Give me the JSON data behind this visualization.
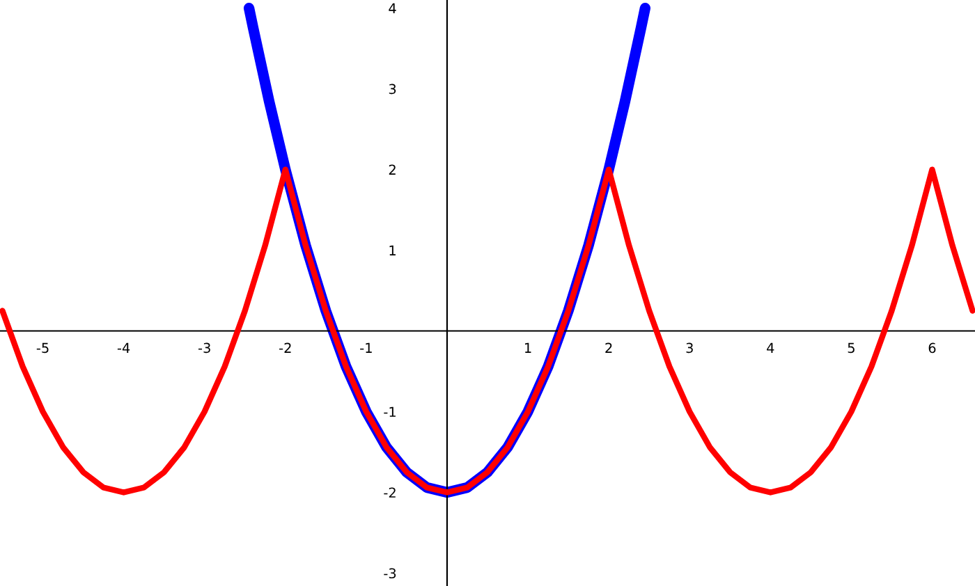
{
  "chart_data": {
    "type": "line",
    "xlim": [
      -5.53,
      6.53
    ],
    "ylim": [
      -3.16,
      4.1
    ],
    "xticks": [
      -5,
      -4,
      -3,
      -2,
      -1,
      1,
      2,
      3,
      4,
      5,
      6
    ],
    "yticks": [
      -3,
      -2,
      -1,
      1,
      2,
      3,
      4
    ],
    "grid": false,
    "legend": false,
    "marker": "none",
    "line_style": "solid",
    "series": [
      {
        "color": "#0000ff",
        "x": [
          -2.45,
          -2.4,
          -2.2,
          -2,
          -1.75,
          -1.5,
          -1.25,
          -1,
          -0.75,
          -0.5,
          -0.25,
          0,
          0.25,
          0.5,
          0.75,
          1,
          1.25,
          1.5,
          1.75,
          2,
          2.2,
          2.4,
          2.45
        ],
        "values": [
          4.0,
          3.76,
          2.84,
          2,
          1.06,
          0.25,
          -0.44,
          -1,
          -1.44,
          -1.75,
          -1.94,
          -2,
          -1.94,
          -1.75,
          -1.44,
          -1,
          -0.44,
          0.25,
          1.06,
          2,
          2.84,
          3.76,
          4.0
        ]
      },
      {
        "color": "#ff0000",
        "x": [
          -5.5,
          -5.25,
          -5,
          -4.75,
          -4.5,
          -4.25,
          -4,
          -3.75,
          -3.5,
          -3.25,
          -3,
          -2.75,
          -2.5,
          -2.25,
          -2,
          -1.75,
          -1.5,
          -1.25,
          -1,
          -0.75,
          -0.5,
          -0.25,
          0,
          0.25,
          0.5,
          0.75,
          1,
          1.25,
          1.5,
          1.75,
          2,
          2.25,
          2.5,
          2.75,
          3,
          3.25,
          3.5,
          3.75,
          4,
          4.25,
          4.5,
          4.75,
          5,
          5.25,
          5.5,
          5.75,
          6,
          6.25,
          6.5
        ],
        "values": [
          0.25,
          -0.44,
          -1,
          -1.44,
          -1.75,
          -1.94,
          -2,
          -1.94,
          -1.75,
          -1.44,
          -1,
          -0.44,
          0.25,
          1.06,
          2,
          1.06,
          0.25,
          -0.44,
          -1,
          -1.44,
          -1.75,
          -1.94,
          -2,
          -1.94,
          -1.75,
          -1.44,
          -1,
          -0.44,
          0.25,
          1.06,
          2,
          1.06,
          0.25,
          -0.44,
          -1,
          -1.44,
          -1.75,
          -1.94,
          -2,
          -1.94,
          -1.75,
          -1.44,
          -1,
          -0.44,
          0.25,
          1.06,
          2,
          1.06,
          0.25
        ]
      }
    ]
  }
}
